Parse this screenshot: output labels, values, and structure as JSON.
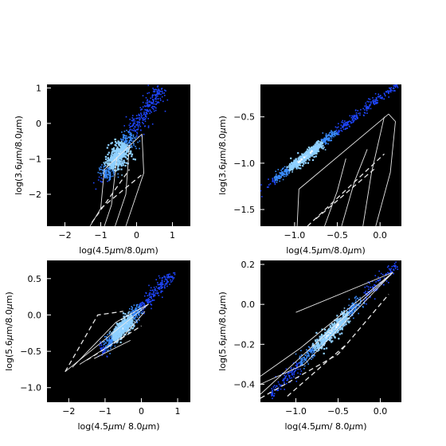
{
  "figure": {
    "panels": 4,
    "layout": "2x2 grid",
    "background": "#ffffff",
    "plot_background": "#000000",
    "density_color_low": "#1f5fff",
    "density_color_high": "#ffffff",
    "model_line_color": "#e8e8e8"
  },
  "chart_data": [
    {
      "type": "scatter",
      "xlabel_prefix": "log(4.5",
      "xlabel_mid": "m/8.0",
      "xlabel_suffix": "m)",
      "ylabel_prefix": "log(3.6",
      "ylabel_mid": "m/8.0",
      "ylabel_suffix": "m)",
      "xlim": [
        -2.5,
        1.5
      ],
      "ylim": [
        -2.9,
        1.1
      ],
      "xticks": [
        -2,
        -1,
        0,
        1
      ],
      "xtick_labels": [
        "−2",
        "−1",
        "0",
        "1"
      ],
      "yticks": [
        1,
        0,
        -1,
        -2
      ],
      "ytick_labels": [
        "1",
        "0",
        "−1",
        "−2"
      ],
      "density": {
        "x0": -0.9,
        "y0": -1.5,
        "x1": 0.7,
        "y1": 1.0,
        "core_x": -0.55,
        "core_y": -0.9,
        "spread": 0.14
      },
      "model_grid": {
        "solid": [
          [
            [
              -0.9,
              -1.3
            ],
            [
              0.15,
              -0.3
            ]
          ],
          [
            [
              0.15,
              -0.3
            ],
            [
              0.2,
              -1.4
            ],
            [
              -0.3,
              -2.9
            ]
          ],
          [
            [
              -0.9,
              -1.3
            ],
            [
              -1.0,
              -2.4
            ],
            [
              -1.3,
              -2.9
            ]
          ],
          [
            [
              -0.55,
              -0.95
            ],
            [
              -0.7,
              -2.3
            ],
            [
              -0.9,
              -2.9
            ]
          ],
          [
            [
              -0.2,
              -0.6
            ],
            [
              -0.3,
              -2.0
            ],
            [
              -0.6,
              -2.9
            ]
          ]
        ],
        "dashed": [
          [
            [
              -1.0,
              -2.4
            ],
            [
              0.2,
              -1.4
            ]
          ],
          [
            [
              -1.25,
              -2.8
            ],
            [
              -0.2,
              -1.3
            ]
          ]
        ]
      }
    },
    {
      "type": "scatter",
      "xlabel_prefix": "log(4.5",
      "xlabel_mid": "m/8.0",
      "xlabel_suffix": "m)",
      "ylabel_prefix": "log(3.6",
      "ylabel_mid": "m/8.0",
      "ylabel_suffix": "m)",
      "xlim": [
        -1.4,
        0.25
      ],
      "ylim": [
        -1.68,
        -0.15
      ],
      "xticks": [
        -1.0,
        -0.5,
        0.0
      ],
      "xtick_labels": [
        "−1.0",
        "−0.5",
        "0.0"
      ],
      "yticks": [
        -0.5,
        -1.0,
        -1.5
      ],
      "ytick_labels": [
        "−0.5",
        "−1.0",
        "−1.5"
      ],
      "density": {
        "x0": -1.25,
        "y0": -1.2,
        "x1": 0.2,
        "y1": -0.15,
        "core_x": -0.85,
        "core_y": -0.95,
        "spread": 0.07
      },
      "model_grid": {
        "solid": [
          [
            [
              -0.95,
              -1.28
            ],
            [
              0.1,
              -0.47
            ]
          ],
          [
            [
              -0.95,
              -1.28
            ],
            [
              -0.97,
              -1.68
            ]
          ],
          [
            [
              0.1,
              -0.47
            ],
            [
              0.18,
              -0.55
            ]
          ],
          [
            [
              0.05,
              -0.5
            ],
            [
              -0.1,
              -1.1
            ],
            [
              -0.2,
              -1.68
            ]
          ],
          [
            [
              -0.15,
              -0.85
            ],
            [
              -0.3,
              -1.2
            ],
            [
              -0.45,
              -1.68
            ]
          ],
          [
            [
              -0.4,
              -0.95
            ],
            [
              -0.5,
              -1.3
            ],
            [
              -0.65,
              -1.68
            ]
          ],
          [
            [
              0.18,
              -0.55
            ],
            [
              0.12,
              -1.1
            ],
            [
              -0.05,
              -1.68
            ]
          ]
        ],
        "dashed": [
          [
            [
              -0.85,
              -1.68
            ],
            [
              0.05,
              -0.9
            ]
          ],
          [
            [
              -0.75,
              -1.6
            ],
            [
              -0.05,
              -1.05
            ]
          ]
        ]
      }
    },
    {
      "type": "scatter",
      "xlabel_prefix": "log(4.5",
      "xlabel_mid": "m/ 8.0",
      "xlabel_suffix": "m)",
      "ylabel_prefix": "log(5.6",
      "ylabel_mid": "m/8.0",
      "ylabel_suffix": "m)",
      "xlim": [
        -2.6,
        1.35
      ],
      "ylim": [
        -1.2,
        0.75
      ],
      "xticks": [
        -2,
        -1,
        0,
        1
      ],
      "xtick_labels": [
        "−2",
        "−1",
        "0",
        "1"
      ],
      "yticks": [
        0.5,
        0.0,
        -0.5,
        -1.0
      ],
      "ytick_labels": [
        "0.5",
        "0.0",
        "−0.5",
        "−1.0"
      ],
      "density": {
        "x0": -1.1,
        "y0": -0.5,
        "x1": 0.9,
        "y1": 0.6,
        "core_x": -0.5,
        "core_y": -0.2,
        "spread": 0.1
      },
      "model_grid": {
        "solid": [
          [
            [
              -2.1,
              -0.78
            ],
            [
              0.2,
              0.15
            ]
          ],
          [
            [
              -1.9,
              -0.72
            ],
            [
              -0.7,
              -0.1
            ],
            [
              0.2,
              0.15
            ]
          ],
          [
            [
              -1.7,
              -0.68
            ],
            [
              -0.5,
              -0.3
            ],
            [
              0.1,
              0.05
            ]
          ],
          [
            [
              -1.3,
              -0.6
            ],
            [
              -0.3,
              -0.35
            ]
          ]
        ],
        "dashed": [
          [
            [
              -2.1,
              -0.78
            ],
            [
              -1.2,
              0.0
            ],
            [
              -0.5,
              0.05
            ]
          ],
          [
            [
              -1.5,
              -0.62
            ],
            [
              0.0,
              -0.15
            ]
          ]
        ]
      }
    },
    {
      "type": "scatter",
      "xlabel_prefix": "log(4.5",
      "xlabel_mid": "m/ 8.0",
      "xlabel_suffix": "m)",
      "ylabel_prefix": "log(5.6",
      "ylabel_mid": "m/8.0",
      "ylabel_suffix": "m)",
      "xlim": [
        -1.42,
        0.25
      ],
      "ylim": [
        -0.49,
        0.22
      ],
      "xticks": [
        -1.0,
        -0.5,
        0.0
      ],
      "xtick_labels": [
        "−1.0",
        "−0.5",
        "0.0"
      ],
      "yticks": [
        0.2,
        0.0,
        -0.2,
        -0.4
      ],
      "ytick_labels": [
        "0.2",
        "0.0",
        "−0.2",
        "−0.4"
      ],
      "density": {
        "x0": -1.3,
        "y0": -0.45,
        "x1": 0.2,
        "y1": 0.2,
        "core_x": -0.55,
        "core_y": -0.2,
        "spread": 0.1
      },
      "model_grid": {
        "solid": [
          [
            [
              -1.42,
              -0.45
            ],
            [
              0.15,
              0.16
            ]
          ],
          [
            [
              -1.42,
              -0.4
            ],
            [
              -0.9,
              -0.3
            ],
            [
              0.15,
              0.16
            ]
          ],
          [
            [
              -1.42,
              -0.36
            ],
            [
              -0.95,
              -0.22
            ],
            [
              0.15,
              0.16
            ]
          ],
          [
            [
              -1.0,
              -0.04
            ],
            [
              0.15,
              0.16
            ]
          ]
        ],
        "dashed": [
          [
            [
              -1.42,
              -0.47
            ],
            [
              -0.5,
              -0.25
            ],
            [
              0.1,
              0.05
            ]
          ],
          [
            [
              -1.1,
              -0.46
            ],
            [
              -0.4,
              -0.2
            ]
          ]
        ]
      }
    }
  ]
}
